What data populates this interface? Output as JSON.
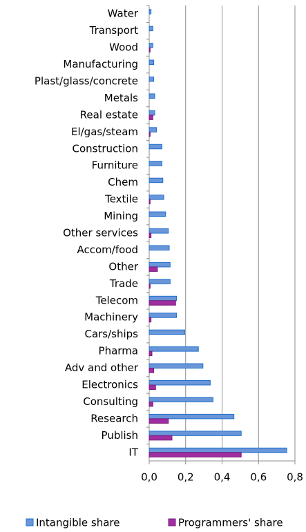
{
  "chart_data": {
    "type": "hbar",
    "categories": [
      "Water",
      "Transport",
      "Wood",
      "Manufacturing",
      "Plast/glass/concrete",
      "Metals",
      "Real estate",
      "El/gas/steam",
      "Construction",
      "Furniture",
      "Chem",
      "Textile",
      "Mining",
      "Other services",
      "Accom/food",
      "Other",
      "Trade",
      "Telecom",
      "Machinery",
      "Cars/ships",
      "Pharma",
      "Adv and other",
      "Electronics",
      "Consulting",
      "Research",
      "Publish",
      "IT"
    ],
    "series": [
      {
        "name": "Intangible share",
        "color": "#6a96d8",
        "values": [
          0.01,
          0.02,
          0.02,
          0.025,
          0.025,
          0.03,
          0.03,
          0.04,
          0.07,
          0.07,
          0.075,
          0.08,
          0.09,
          0.105,
          0.11,
          0.115,
          0.115,
          0.15,
          0.15,
          0.195,
          0.27,
          0.295,
          0.335,
          0.35,
          0.465,
          0.505,
          0.755
        ]
      },
      {
        "name": "Programmers' share",
        "color": "#a02ea0",
        "values": [
          0,
          0,
          0.005,
          0,
          0,
          0,
          0.02,
          0.005,
          0,
          0,
          0,
          0.005,
          0,
          0.01,
          0,
          0.045,
          0.005,
          0.145,
          0.01,
          0,
          0.015,
          0.025,
          0.035,
          0.02,
          0.105,
          0.125,
          0.505
        ]
      }
    ],
    "xlim": [
      0,
      0.8
    ],
    "xticks": [
      {
        "value": 0,
        "label": "0,0"
      },
      {
        "value": 0.2,
        "label": "0,2"
      },
      {
        "value": 0.4,
        "label": "0,4"
      },
      {
        "value": 0.6,
        "label": "0,6"
      },
      {
        "value": 0.8,
        "label": "0,8"
      }
    ],
    "grid": true,
    "legend": "bottom"
  }
}
